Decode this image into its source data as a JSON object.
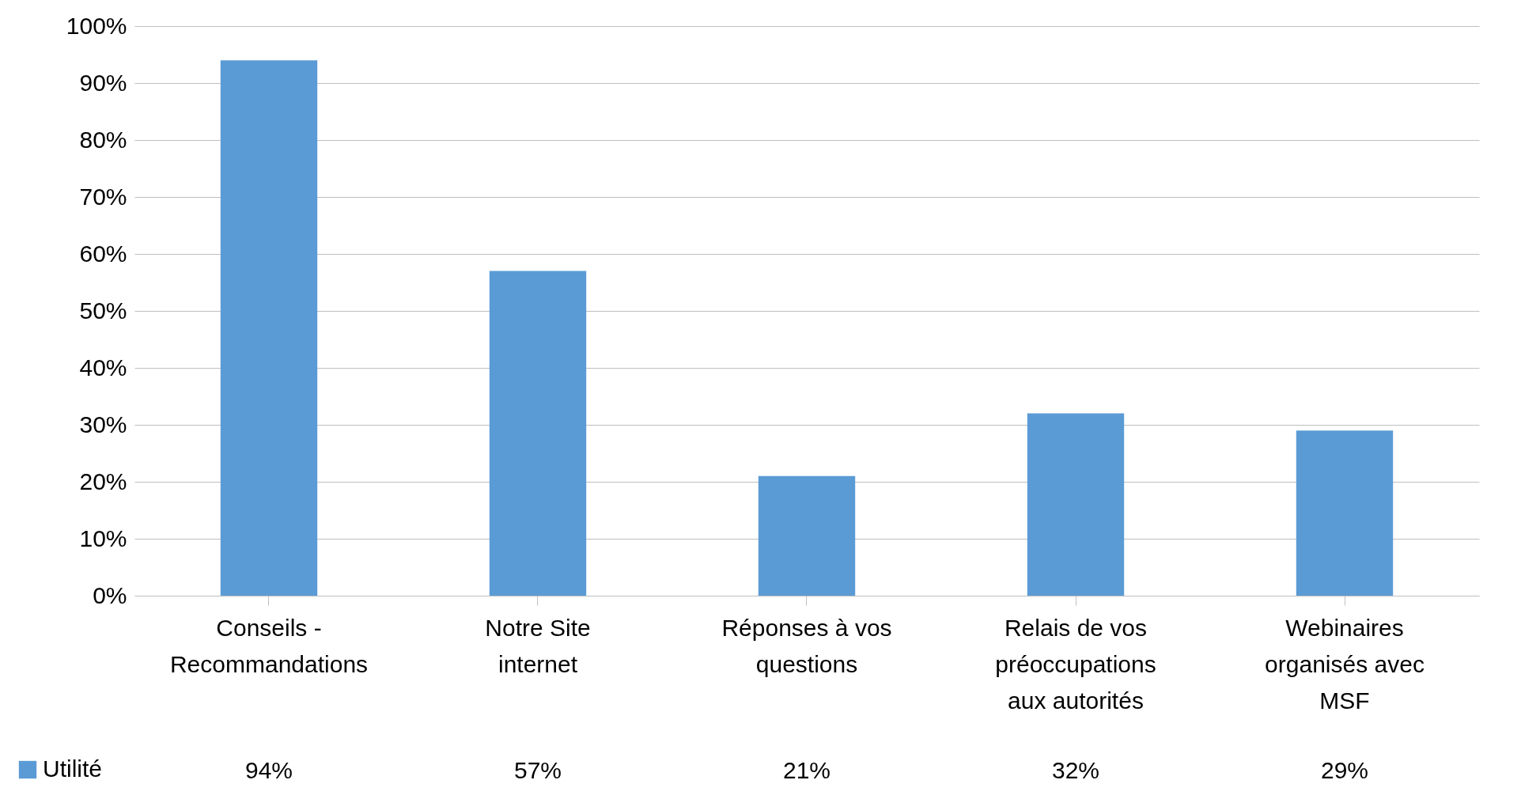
{
  "chart_data": {
    "type": "bar",
    "categories": [
      "Conseils - Recommandations",
      "Notre Site internet",
      "Réponses à vos questions",
      "Relais de vos préoccupations aux autorités",
      "Webinaires organisés avec MSF"
    ],
    "series": [
      {
        "name": "Utilité",
        "color": "#5b9bd5",
        "values": [
          94,
          57,
          21,
          32,
          29
        ],
        "value_labels": [
          "94%",
          "57%",
          "21%",
          "32%",
          "29%"
        ]
      }
    ],
    "ylim": [
      0,
      100
    ],
    "yticks": [
      {
        "value": 0,
        "label": "0%"
      },
      {
        "value": 10,
        "label": "10%"
      },
      {
        "value": 20,
        "label": "20%"
      },
      {
        "value": 30,
        "label": "30%"
      },
      {
        "value": 40,
        "label": "40%"
      },
      {
        "value": 50,
        "label": "50%"
      },
      {
        "value": 60,
        "label": "60%"
      },
      {
        "value": 70,
        "label": "70%"
      },
      {
        "value": 80,
        "label": "80%"
      },
      {
        "value": 90,
        "label": "90%"
      },
      {
        "value": 100,
        "label": "100%"
      }
    ],
    "grid": "y",
    "legend": "bottom left"
  }
}
